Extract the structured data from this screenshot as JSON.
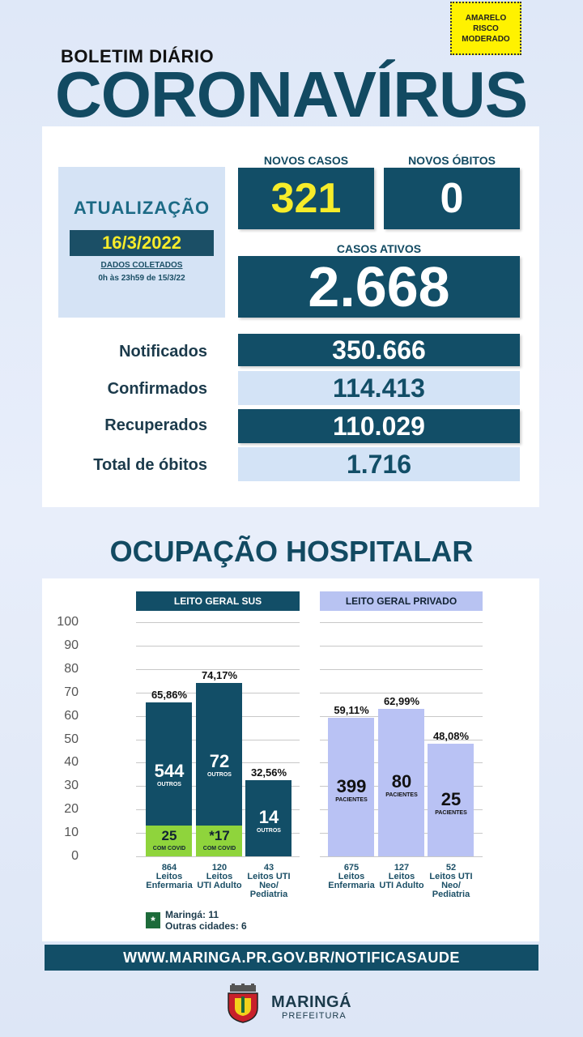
{
  "risk": {
    "line1": "AMARELO",
    "line2": "RISCO",
    "line3": "MODERADO",
    "color": "#fff200"
  },
  "header": {
    "subtitle": "BOLETIM DIÁRIO",
    "title": "CORONAVÍRUS"
  },
  "update": {
    "title": "ATUALIZAÇÃO",
    "date": "16/3/2022",
    "collected_label": "DADOS COLETADOS",
    "range": "0h às 23h59 de 15/3/22"
  },
  "summary": {
    "new_cases_label": "NOVOS CASOS",
    "new_cases": "321",
    "new_deaths_label": "NOVOS ÓBITOS",
    "new_deaths": "0",
    "active_label": "CASOS ATIVOS",
    "active": "2.668"
  },
  "totals": [
    {
      "label": "Notificados",
      "value": "350.666"
    },
    {
      "label": "Confirmados",
      "value": "114.413"
    },
    {
      "label": "Recuperados",
      "value": "110.029"
    },
    {
      "label": "Total de óbitos",
      "value": "1.716"
    }
  ],
  "hospital_title": "OCUPAÇÃO HOSPITALAR",
  "chart_data": {
    "type": "bar",
    "y_ticks": [
      "100",
      "90",
      "80",
      "70",
      "60",
      "50",
      "40",
      "30",
      "20",
      "10",
      "0"
    ],
    "ylim": [
      0,
      100
    ],
    "groups": [
      {
        "name": "LEITO GERAL SUS",
        "bars": [
          {
            "pct": 65.86,
            "pct_label": "65,86%",
            "main": "544",
            "main_sub": "OUTROS",
            "covid": "25",
            "covid_sub": "COM COVID",
            "covid_pct": 13.2,
            "beds": "864",
            "cap1": "Leitos",
            "cap2": "Enfermaria",
            "cap3": ""
          },
          {
            "pct": 74.17,
            "pct_label": "74,17%",
            "main": "72",
            "main_sub": "OUTROS",
            "covid": "*17",
            "covid_sub": "COM COVID",
            "covid_pct": 13.2,
            "beds": "120",
            "cap1": "Leitos",
            "cap2": "UTI Adulto",
            "cap3": ""
          },
          {
            "pct": 32.56,
            "pct_label": "32,56%",
            "main": "14",
            "main_sub": "OUTROS",
            "covid": "",
            "covid_sub": "",
            "covid_pct": 0,
            "beds": "43",
            "cap1": "Leitos UTI",
            "cap2": "Neo/",
            "cap3": "Pediatria"
          }
        ]
      },
      {
        "name": "LEITO GERAL PRIVADO",
        "bars": [
          {
            "pct": 59.11,
            "pct_label": "59,11%",
            "main": "399",
            "main_sub": "PACIENTES",
            "beds": "675",
            "cap1": "Leitos",
            "cap2": "Enfermaria",
            "cap3": ""
          },
          {
            "pct": 62.99,
            "pct_label": "62,99%",
            "main": "80",
            "main_sub": "PACIENTES",
            "beds": "127",
            "cap1": "Leitos",
            "cap2": "UTI Adulto",
            "cap3": ""
          },
          {
            "pct": 48.08,
            "pct_label": "48,08%",
            "main": "25",
            "main_sub": "PACIENTES",
            "beds": "52",
            "cap1": "Leitos UTI",
            "cap2": "Neo/",
            "cap3": "Pediatria"
          }
        ]
      }
    ]
  },
  "legend": {
    "symbol": "*",
    "line1": "Maringá: 11",
    "line2": "Outras cidades: 6"
  },
  "footer": {
    "url": "WWW.MARINGA.PR.GOV.BR/NOTIFICASAUDE",
    "brand": "MARINGÁ",
    "brand_sub": "PREFEITURA"
  }
}
